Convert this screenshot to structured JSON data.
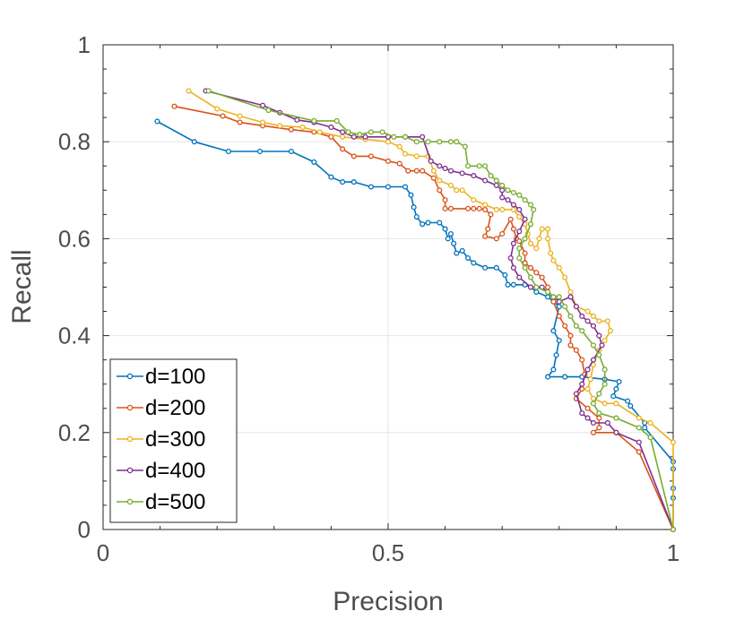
{
  "chart_data": {
    "type": "line",
    "title": "",
    "xlabel": "Precision",
    "ylabel": "Recall",
    "xlim": [
      0,
      1
    ],
    "ylim": [
      0,
      1
    ],
    "grid": true,
    "legend_position": "bottom-left",
    "x_ticks": [
      0,
      0.5,
      1
    ],
    "x_tick_labels": [
      "0",
      "0.5",
      "1"
    ],
    "y_ticks": [
      0,
      0.2,
      0.4,
      0.6,
      0.8,
      1
    ],
    "y_tick_labels": [
      "0",
      "0.2",
      "0.4",
      "0.6",
      "0.8",
      "1"
    ],
    "series": [
      {
        "name": "d=100",
        "color": "#0072BD",
        "points": [
          [
            0.095,
            0.842
          ],
          [
            0.16,
            0.8
          ],
          [
            0.22,
            0.78
          ],
          [
            0.275,
            0.78
          ],
          [
            0.33,
            0.78
          ],
          [
            0.37,
            0.758
          ],
          [
            0.4,
            0.727
          ],
          [
            0.42,
            0.717
          ],
          [
            0.44,
            0.717
          ],
          [
            0.47,
            0.707
          ],
          [
            0.5,
            0.707
          ],
          [
            0.53,
            0.707
          ],
          [
            0.54,
            0.69
          ],
          [
            0.545,
            0.665
          ],
          [
            0.55,
            0.645
          ],
          [
            0.56,
            0.63
          ],
          [
            0.57,
            0.633
          ],
          [
            0.59,
            0.633
          ],
          [
            0.6,
            0.62
          ],
          [
            0.605,
            0.6
          ],
          [
            0.61,
            0.61
          ],
          [
            0.615,
            0.59
          ],
          [
            0.62,
            0.57
          ],
          [
            0.63,
            0.575
          ],
          [
            0.64,
            0.56
          ],
          [
            0.65,
            0.55
          ],
          [
            0.67,
            0.54
          ],
          [
            0.69,
            0.54
          ],
          [
            0.705,
            0.525
          ],
          [
            0.71,
            0.505
          ],
          [
            0.72,
            0.505
          ],
          [
            0.74,
            0.505
          ],
          [
            0.75,
            0.5
          ],
          [
            0.76,
            0.49
          ],
          [
            0.78,
            0.48
          ],
          [
            0.79,
            0.47
          ],
          [
            0.8,
            0.46
          ],
          [
            0.79,
            0.41
          ],
          [
            0.8,
            0.39
          ],
          [
            0.795,
            0.36
          ],
          [
            0.79,
            0.33
          ],
          [
            0.78,
            0.315
          ],
          [
            0.81,
            0.315
          ],
          [
            0.84,
            0.315
          ],
          [
            0.88,
            0.31
          ],
          [
            0.905,
            0.305
          ],
          [
            0.9,
            0.29
          ],
          [
            0.895,
            0.275
          ],
          [
            0.92,
            0.265
          ],
          [
            0.925,
            0.255
          ],
          [
            0.95,
            0.22
          ],
          [
            0.95,
            0.21
          ],
          [
            1.0,
            0.14
          ],
          [
            1.0,
            0.125
          ],
          [
            1.0,
            0.085
          ],
          [
            1.0,
            0.065
          ],
          [
            1.0,
            0.0
          ]
        ]
      },
      {
        "name": "d=200",
        "color": "#D95319",
        "points": [
          [
            0.125,
            0.873
          ],
          [
            0.21,
            0.853
          ],
          [
            0.24,
            0.84
          ],
          [
            0.28,
            0.833
          ],
          [
            0.33,
            0.825
          ],
          [
            0.37,
            0.82
          ],
          [
            0.4,
            0.81
          ],
          [
            0.42,
            0.785
          ],
          [
            0.44,
            0.77
          ],
          [
            0.47,
            0.77
          ],
          [
            0.5,
            0.76
          ],
          [
            0.52,
            0.755
          ],
          [
            0.535,
            0.74
          ],
          [
            0.55,
            0.74
          ],
          [
            0.56,
            0.74
          ],
          [
            0.58,
            0.725
          ],
          [
            0.59,
            0.7
          ],
          [
            0.6,
            0.68
          ],
          [
            0.6,
            0.662
          ],
          [
            0.61,
            0.662
          ],
          [
            0.64,
            0.662
          ],
          [
            0.65,
            0.662
          ],
          [
            0.66,
            0.662
          ],
          [
            0.67,
            0.66
          ],
          [
            0.68,
            0.65
          ],
          [
            0.675,
            0.62
          ],
          [
            0.67,
            0.605
          ],
          [
            0.69,
            0.6
          ],
          [
            0.7,
            0.61
          ],
          [
            0.715,
            0.64
          ],
          [
            0.72,
            0.62
          ],
          [
            0.725,
            0.6
          ],
          [
            0.73,
            0.595
          ],
          [
            0.74,
            0.57
          ],
          [
            0.74,
            0.55
          ],
          [
            0.75,
            0.54
          ],
          [
            0.76,
            0.53
          ],
          [
            0.77,
            0.52
          ],
          [
            0.78,
            0.5
          ],
          [
            0.79,
            0.47
          ],
          [
            0.8,
            0.44
          ],
          [
            0.81,
            0.42
          ],
          [
            0.82,
            0.4
          ],
          [
            0.82,
            0.38
          ],
          [
            0.83,
            0.37
          ],
          [
            0.84,
            0.35
          ],
          [
            0.845,
            0.32
          ],
          [
            0.84,
            0.29
          ],
          [
            0.83,
            0.27
          ],
          [
            0.85,
            0.25
          ],
          [
            0.87,
            0.23
          ],
          [
            0.87,
            0.21
          ],
          [
            0.86,
            0.2
          ],
          [
            0.9,
            0.2
          ],
          [
            0.94,
            0.16
          ],
          [
            1.0,
            0.0
          ]
        ]
      },
      {
        "name": "d=300",
        "color": "#EDB120",
        "points": [
          [
            0.15,
            0.905
          ],
          [
            0.2,
            0.868
          ],
          [
            0.24,
            0.853
          ],
          [
            0.28,
            0.84
          ],
          [
            0.31,
            0.833
          ],
          [
            0.35,
            0.83
          ],
          [
            0.38,
            0.82
          ],
          [
            0.42,
            0.81
          ],
          [
            0.46,
            0.805
          ],
          [
            0.5,
            0.8
          ],
          [
            0.52,
            0.79
          ],
          [
            0.53,
            0.775
          ],
          [
            0.55,
            0.77
          ],
          [
            0.57,
            0.77
          ],
          [
            0.58,
            0.74
          ],
          [
            0.59,
            0.72
          ],
          [
            0.61,
            0.71
          ],
          [
            0.62,
            0.7
          ],
          [
            0.63,
            0.7
          ],
          [
            0.65,
            0.68
          ],
          [
            0.67,
            0.67
          ],
          [
            0.69,
            0.66
          ],
          [
            0.7,
            0.66
          ],
          [
            0.72,
            0.66
          ],
          [
            0.73,
            0.645
          ],
          [
            0.74,
            0.63
          ],
          [
            0.745,
            0.61
          ],
          [
            0.75,
            0.59
          ],
          [
            0.76,
            0.58
          ],
          [
            0.765,
            0.6
          ],
          [
            0.77,
            0.62
          ],
          [
            0.78,
            0.62
          ],
          [
            0.78,
            0.6
          ],
          [
            0.785,
            0.57
          ],
          [
            0.79,
            0.555
          ],
          [
            0.8,
            0.54
          ],
          [
            0.81,
            0.52
          ],
          [
            0.82,
            0.49
          ],
          [
            0.83,
            0.46
          ],
          [
            0.85,
            0.45
          ],
          [
            0.86,
            0.44
          ],
          [
            0.87,
            0.43
          ],
          [
            0.885,
            0.43
          ],
          [
            0.89,
            0.41
          ],
          [
            0.88,
            0.39
          ],
          [
            0.87,
            0.37
          ],
          [
            0.86,
            0.34
          ],
          [
            0.855,
            0.31
          ],
          [
            0.85,
            0.29
          ],
          [
            0.86,
            0.27
          ],
          [
            0.88,
            0.26
          ],
          [
            0.9,
            0.26
          ],
          [
            0.94,
            0.23
          ],
          [
            0.96,
            0.22
          ],
          [
            1.0,
            0.18
          ],
          [
            1.0,
            0.0
          ]
        ]
      },
      {
        "name": "d=400",
        "color": "#7E2F8E",
        "points": [
          [
            0.18,
            0.905
          ],
          [
            0.28,
            0.875
          ],
          [
            0.31,
            0.86
          ],
          [
            0.34,
            0.845
          ],
          [
            0.37,
            0.84
          ],
          [
            0.4,
            0.83
          ],
          [
            0.42,
            0.82
          ],
          [
            0.44,
            0.81
          ],
          [
            0.46,
            0.81
          ],
          [
            0.5,
            0.81
          ],
          [
            0.53,
            0.81
          ],
          [
            0.56,
            0.81
          ],
          [
            0.575,
            0.76
          ],
          [
            0.59,
            0.75
          ],
          [
            0.6,
            0.745
          ],
          [
            0.61,
            0.74
          ],
          [
            0.63,
            0.735
          ],
          [
            0.65,
            0.73
          ],
          [
            0.67,
            0.72
          ],
          [
            0.69,
            0.71
          ],
          [
            0.7,
            0.7
          ],
          [
            0.7,
            0.685
          ],
          [
            0.71,
            0.68
          ],
          [
            0.72,
            0.67
          ],
          [
            0.73,
            0.66
          ],
          [
            0.74,
            0.64
          ],
          [
            0.73,
            0.615
          ],
          [
            0.72,
            0.59
          ],
          [
            0.715,
            0.56
          ],
          [
            0.72,
            0.54
          ],
          [
            0.73,
            0.52
          ],
          [
            0.75,
            0.5
          ],
          [
            0.77,
            0.5
          ],
          [
            0.79,
            0.48
          ],
          [
            0.8,
            0.47
          ],
          [
            0.82,
            0.48
          ],
          [
            0.83,
            0.46
          ],
          [
            0.84,
            0.44
          ],
          [
            0.85,
            0.43
          ],
          [
            0.86,
            0.42
          ],
          [
            0.87,
            0.4
          ],
          [
            0.875,
            0.38
          ],
          [
            0.86,
            0.35
          ],
          [
            0.85,
            0.33
          ],
          [
            0.84,
            0.3
          ],
          [
            0.83,
            0.28
          ],
          [
            0.84,
            0.24
          ],
          [
            0.85,
            0.23
          ],
          [
            0.86,
            0.22
          ],
          [
            0.885,
            0.22
          ],
          [
            0.9,
            0.2
          ],
          [
            0.94,
            0.18
          ],
          [
            1.0,
            0.0
          ]
        ]
      },
      {
        "name": "d=500",
        "color": "#77AC30",
        "points": [
          [
            0.185,
            0.905
          ],
          [
            0.29,
            0.865
          ],
          [
            0.37,
            0.843
          ],
          [
            0.41,
            0.843
          ],
          [
            0.43,
            0.82
          ],
          [
            0.45,
            0.815
          ],
          [
            0.47,
            0.82
          ],
          [
            0.49,
            0.82
          ],
          [
            0.51,
            0.81
          ],
          [
            0.53,
            0.81
          ],
          [
            0.55,
            0.8
          ],
          [
            0.57,
            0.8
          ],
          [
            0.59,
            0.8
          ],
          [
            0.61,
            0.8
          ],
          [
            0.62,
            0.8
          ],
          [
            0.635,
            0.79
          ],
          [
            0.64,
            0.75
          ],
          [
            0.66,
            0.75
          ],
          [
            0.67,
            0.75
          ],
          [
            0.68,
            0.73
          ],
          [
            0.69,
            0.72
          ],
          [
            0.7,
            0.71
          ],
          [
            0.71,
            0.7
          ],
          [
            0.72,
            0.695
          ],
          [
            0.73,
            0.69
          ],
          [
            0.74,
            0.68
          ],
          [
            0.75,
            0.67
          ],
          [
            0.755,
            0.66
          ],
          [
            0.75,
            0.63
          ],
          [
            0.74,
            0.6
          ],
          [
            0.73,
            0.58
          ],
          [
            0.73,
            0.56
          ],
          [
            0.74,
            0.54
          ],
          [
            0.75,
            0.52
          ],
          [
            0.76,
            0.5
          ],
          [
            0.78,
            0.49
          ],
          [
            0.79,
            0.48
          ],
          [
            0.8,
            0.48
          ],
          [
            0.81,
            0.46
          ],
          [
            0.82,
            0.44
          ],
          [
            0.83,
            0.42
          ],
          [
            0.84,
            0.41
          ],
          [
            0.86,
            0.38
          ],
          [
            0.87,
            0.36
          ],
          [
            0.88,
            0.33
          ],
          [
            0.88,
            0.3
          ],
          [
            0.87,
            0.28
          ],
          [
            0.86,
            0.26
          ],
          [
            0.87,
            0.24
          ],
          [
            0.9,
            0.23
          ],
          [
            0.94,
            0.21
          ],
          [
            0.96,
            0.19
          ],
          [
            1.0,
            0.0
          ]
        ]
      }
    ]
  }
}
